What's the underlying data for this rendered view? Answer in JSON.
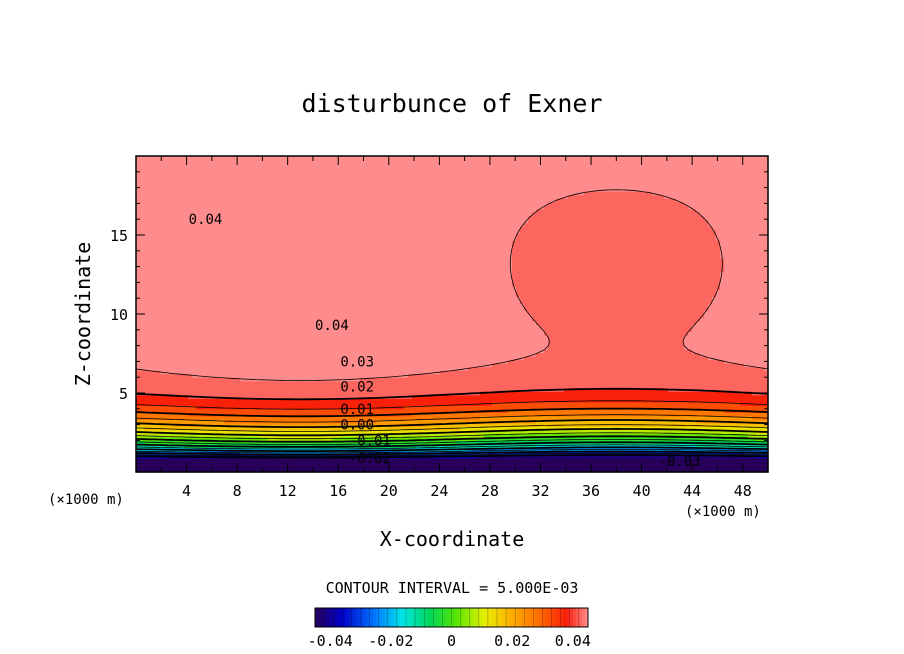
{
  "chart_data": {
    "type": "contour",
    "title": "disturbunce of Exner",
    "xlabel": "X-coordinate",
    "ylabel": "Z-coordinate",
    "x_unit": "(×1000 m)",
    "y_unit": "(×1000 m)",
    "xlim": [
      0,
      50
    ],
    "ylim": [
      0,
      20
    ],
    "x_ticks": [
      4,
      8,
      12,
      16,
      20,
      24,
      28,
      32,
      36,
      40,
      44,
      48
    ],
    "y_ticks": [
      5,
      10,
      15
    ],
    "x_tick_labels": [
      "4",
      "8",
      "12",
      "16",
      "20",
      "24",
      "28",
      "32",
      "36",
      "40",
      "44",
      "48"
    ],
    "y_tick_labels": [
      "5",
      "10",
      "15"
    ],
    "contour_interval_text": "CONTOUR INTERVAL = 5.000E-03",
    "contour_interval": 0.005,
    "value_range": [
      -0.045,
      0.045
    ],
    "contour_labels": [
      {
        "text": "0.04",
        "x": 5.5,
        "z": 16.0
      },
      {
        "text": "0.04",
        "x": 15.5,
        "z": 9.3
      },
      {
        "text": "0.03",
        "x": 17.5,
        "z": 7.0
      },
      {
        "text": "0.02",
        "x": 17.5,
        "z": 5.4
      },
      {
        "text": "0.01",
        "x": 17.5,
        "z": 4.0
      },
      {
        "text": "0.00",
        "x": 17.5,
        "z": 3.0
      },
      {
        "text": "-0.01",
        "x": 18.5,
        "z": 2.0
      },
      {
        "text": "-0.02",
        "x": 18.5,
        "z": 0.9
      },
      {
        "text": "-0.03",
        "x": 43.0,
        "z": 0.7
      }
    ],
    "colorbar": {
      "ticks": [
        -0.04,
        -0.02,
        0,
        0.02,
        0.04
      ],
      "tick_labels": [
        "-0.04",
        "-0.02",
        "0",
        "0.02",
        "0.04"
      ]
    }
  }
}
